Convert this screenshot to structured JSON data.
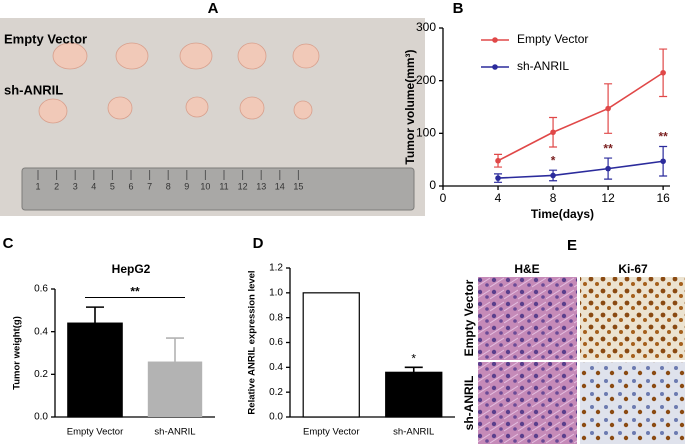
{
  "figure": {
    "panel_labels": [
      "A",
      "B",
      "C",
      "D",
      "E"
    ],
    "photo_a": {
      "row_labels": [
        "Empty Vector",
        "sh-ANRIL"
      ],
      "ruler_numbers": [
        1,
        2,
        3,
        4,
        5,
        6,
        7,
        8,
        9,
        10,
        11,
        12,
        13,
        14,
        15
      ]
    },
    "photo_e": {
      "column_labels": [
        "H&E",
        "Ki-67"
      ],
      "row_labels": [
        "Empty Vector",
        "sh-ANRIL"
      ]
    }
  },
  "chart_data": [
    {
      "type": "line",
      "xlabel": "Time(days)",
      "ylabel": "Tumor volume(mm³)",
      "x": [
        4,
        8,
        12,
        16
      ],
      "xlim": [
        0,
        16.5
      ],
      "xticks": [
        0,
        4,
        8,
        12,
        16
      ],
      "ylim": [
        0,
        300
      ],
      "yticks": [
        0,
        100,
        200,
        300
      ],
      "legend": "upper-center",
      "series": [
        {
          "name": "Empty Vector",
          "color": "#e04848",
          "values": [
            48,
            102,
            147,
            215
          ],
          "errors": [
            12,
            28,
            47,
            45
          ]
        },
        {
          "name": "sh-ANRIL",
          "color": "#2b2b9c",
          "values": [
            15,
            20,
            33,
            47
          ],
          "errors": [
            8,
            10,
            20,
            28
          ]
        }
      ],
      "annotations": [
        {
          "x": 8,
          "text": "*"
        },
        {
          "x": 12,
          "text": "**"
        },
        {
          "x": 16,
          "text": "**"
        }
      ]
    },
    {
      "type": "bar",
      "title": "HepG2",
      "ylabel": "Tumor weight(g)",
      "categories": [
        "Empty Vector",
        "sh-ANRIL"
      ],
      "values": [
        0.44,
        0.26
      ],
      "errors": [
        0.075,
        0.11
      ],
      "colors": [
        "#000000",
        "#b3b3b3"
      ],
      "ylim": [
        0,
        0.6
      ],
      "yticks": [
        {
          "value": 0,
          "label": "0.0"
        },
        0.2,
        0.4,
        0.6
      ],
      "significance": {
        "text": "**",
        "y": 0.56
      }
    },
    {
      "type": "bar",
      "ylabel": "Relative ANRIL expression level",
      "categories": [
        "Empty Vector",
        "sh-ANRIL"
      ],
      "values": [
        1.0,
        0.36
      ],
      "errors": [
        null,
        0.04
      ],
      "colors": [
        "#ffffff",
        "#000000"
      ],
      "ylim": [
        0,
        1.2
      ],
      "yticks": [
        {
          "value": 0,
          "label": "0.0"
        },
        0.2,
        0.4,
        0.6,
        0.8,
        {
          "value": 1,
          "label": "1.0"
        },
        1.2
      ],
      "significance": {
        "text": "*"
      }
    }
  ]
}
